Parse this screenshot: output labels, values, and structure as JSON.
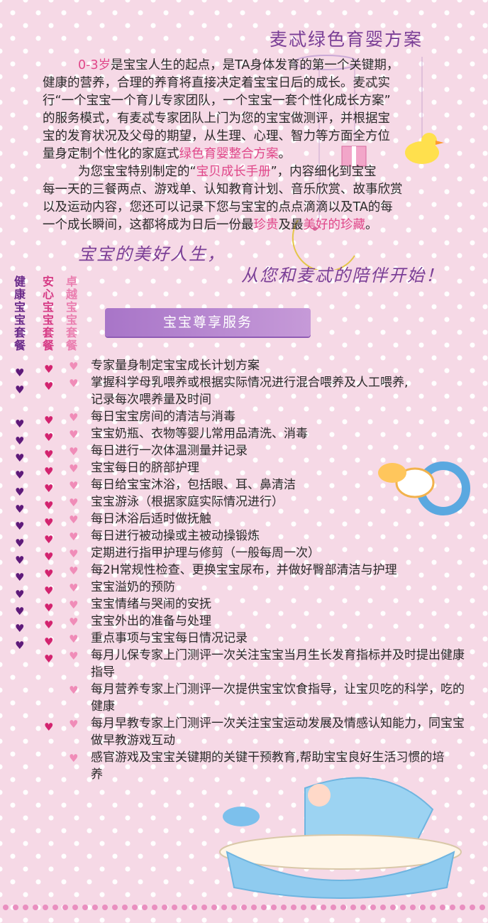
{
  "title": "麦忒绿色育婴方案",
  "intro": {
    "p1_line1_a": "0-3岁",
    "p1_line1_b": "是宝宝人生的起点，是TA身体发育的第一个关键期，",
    "p1_line2": "健康的营养，合理的养育将直接决定着宝宝日后的成长。麦忒实",
    "p1_line3": "行“一个宝宝一个育儿专家团队，一个宝宝一套个性化成长方案”",
    "p1_line4": "的服务模式，有麦忒专家团队上门为您的宝宝做测评，并根据宝",
    "p1_line5": "宝的发育状况及父母的期望，从生理、心理、智力等方面全方位",
    "p1_line6_a": "量身定制个性化的家庭式",
    "p1_line6_b": "绿色育婴整合方案",
    "p1_line6_c": "。",
    "p2_line1_a": "为您宝宝特别制定的“",
    "p2_line1_b": "宝贝成长手册",
    "p2_line1_c": "”，内容细化到宝宝",
    "p2_line2": "每一天的三餐两点、游戏单、认知教育计划、音乐欣赏、故事欣赏",
    "p2_line3": "以及运动内容，您还可以记录下您与宝宝的点点滴滴以及TA的每",
    "p2_line4_a": "一个成长瞬间，这都将成为日后一份最",
    "p2_line4_b": "珍贵",
    "p2_line4_c": "及最",
    "p2_line4_d": "美好的珍藏",
    "p2_line4_e": "。"
  },
  "slogan": {
    "line1": "宝宝的美好人生，",
    "line2": "从您和麦忒的陪伴开始！"
  },
  "packages": {
    "health": "健康宝宝套餐",
    "safe": "安心宝宝套餐",
    "excellent": "卓越宝宝套餐"
  },
  "banner": "宝宝尊享服务",
  "services": [
    {
      "text": "专家量身制定宝宝成长计划方案"
    },
    {
      "text": "掌握科学母乳喂养或根据实际情况进行混合喂养及人工喂养,记录每次喂养量及时间"
    },
    {
      "text": "每日宝宝房间的清洁与消毒"
    },
    {
      "text": "宝宝奶瓶、衣物等婴儿常用品清洗、消毒"
    },
    {
      "text": "每日进行一次体温测量并记录"
    },
    {
      "text": "宝宝每日的脐部护理"
    },
    {
      "text": "每日给宝宝沐浴，包括眼、耳、鼻清洁"
    },
    {
      "text": "宝宝游泳（根据家庭实际情况进行）"
    },
    {
      "text": "每日沐浴后适时做抚触"
    },
    {
      "text": "每日进行被动操或主被动操锻炼"
    },
    {
      "text": "定期进行指甲护理与修剪（一般每周一次）"
    },
    {
      "text": "每2H常规性检查、更换宝宝尿布，并做好臀部清洁与护理"
    },
    {
      "text": "宝宝溢奶的预防"
    },
    {
      "text": "宝宝情绪与哭闹的安抚"
    },
    {
      "text": "宝宝外出的准备与处理"
    },
    {
      "text": "重点事项与宝宝每日情况记录"
    },
    {
      "text": "每月儿保专家上门测评一次关注宝宝当月生长发育指标并及时提出健康指导"
    },
    {
      "text": "每月营养专家上门测评一次提供宝宝饮食指导，让宝贝吃的科学，吃的健康"
    },
    {
      "text": "每月早教专家上门测评一次关注宝宝运动发展及情感认知能力，同宝宝做早教游戏互动"
    },
    {
      "text": "感官游戏及宝宝关键期的关键干预教育,帮助宝宝良好生活习惯的培养"
    }
  ],
  "colors": {
    "purple": "#7a3e96",
    "pink": "#e0488a",
    "light_pink": "#f08cb8",
    "banner": "#b282cc"
  },
  "icons": {
    "heart": "♥"
  }
}
